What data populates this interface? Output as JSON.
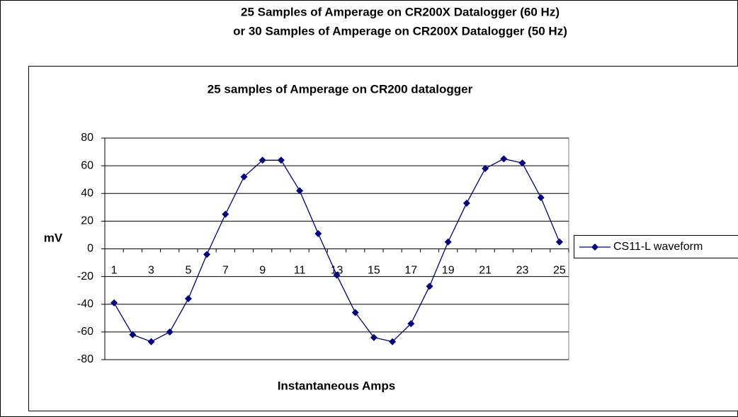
{
  "page_title": [
    "25 Samples of Amperage on CR200X Datalogger (60 Hz)",
    "or 30 Samples of Amperage on CR200X Datalogger (50 Hz)"
  ],
  "chart_data": {
    "type": "line",
    "title": "25 samples of Amperage on CR200 datalogger",
    "x_label": "Instantaneous Amps",
    "y_label": "mV",
    "categories": [
      "1",
      null,
      "3",
      null,
      "5",
      null,
      "7",
      null,
      "9",
      null,
      "11",
      null,
      "13",
      null,
      "15",
      null,
      "17",
      null,
      "19",
      null,
      "21",
      null,
      "23",
      null,
      "25"
    ],
    "series": [
      {
        "name": "CS11-L waveform",
        "color": "#000080",
        "values": [
          -39,
          -62,
          -67,
          -60,
          -36,
          -4,
          25,
          52,
          64,
          64,
          42,
          11,
          -19,
          -46,
          -64,
          -67,
          -54,
          -27,
          5,
          33,
          58,
          65,
          62,
          37,
          5
        ]
      }
    ],
    "ylim": [
      -80,
      80
    ],
    "yticks": [
      -80,
      -60,
      -40,
      -20,
      0,
      20,
      40,
      60,
      80
    ],
    "grid": true,
    "legend": "right"
  }
}
